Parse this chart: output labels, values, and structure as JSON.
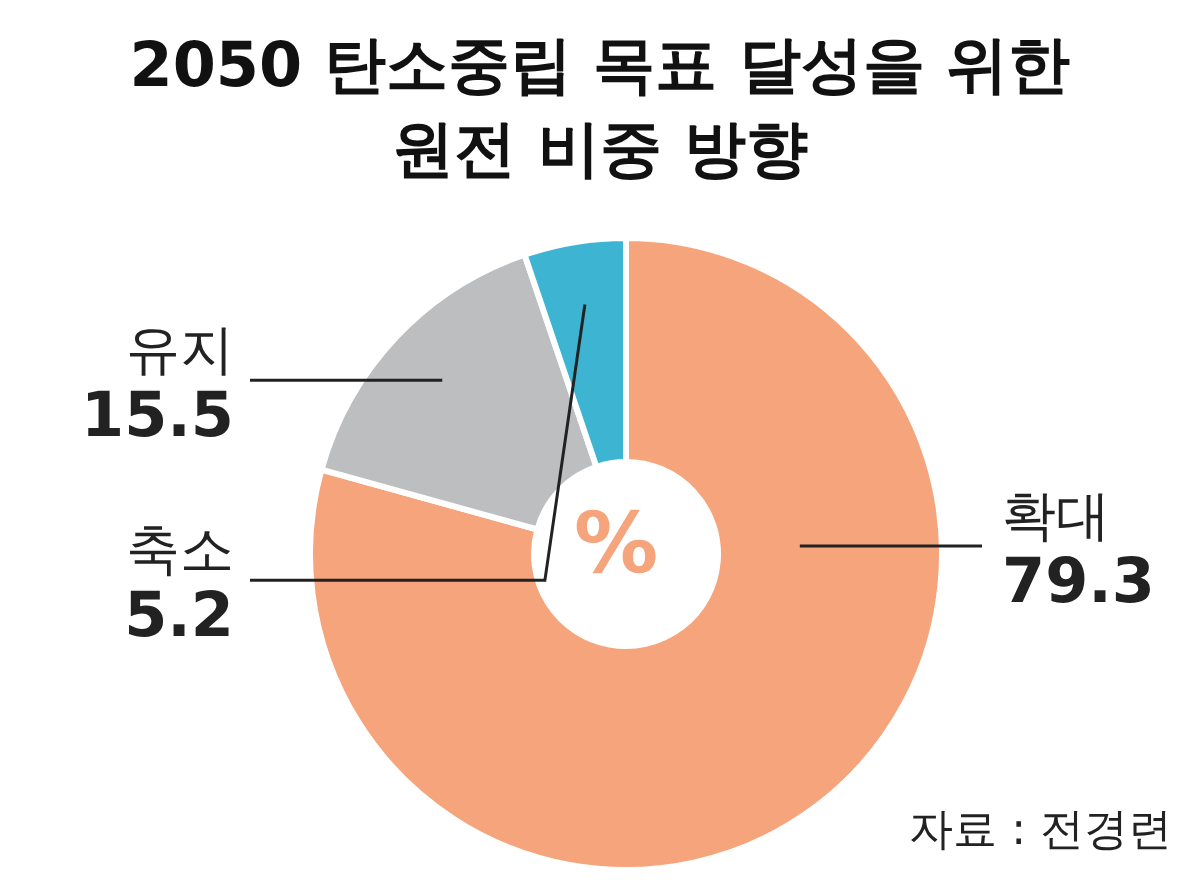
{
  "chart_data": {
    "type": "donut",
    "title": "2050 탄소중립 목표 달성을 위한\n원전 비중 방향",
    "categories": [
      "확대",
      "유지",
      "축소"
    ],
    "values": [
      79.3,
      15.5,
      5.2
    ],
    "colors": [
      "#f5a47b",
      "#bcbec0",
      "#3cb4d2"
    ],
    "data_labels": true,
    "annotations": [
      "%",
      "자료 : 전경련"
    ]
  }
}
